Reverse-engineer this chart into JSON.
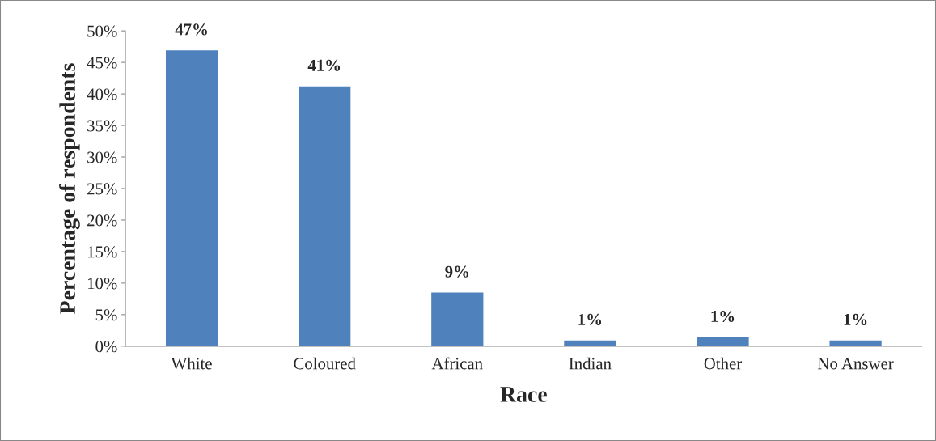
{
  "chart_data": {
    "type": "bar",
    "xlabel": "Race",
    "ylabel": "Percentage of respondents",
    "categories": [
      "White",
      "Coloured",
      "African",
      "Indian",
      "Other",
      "No Answer"
    ],
    "values": [
      47,
      41.3,
      8.6,
      1.0,
      1.5,
      1.0
    ],
    "value_labels": [
      "47%",
      "41%",
      "9%",
      "1%",
      "1%",
      "1%"
    ],
    "color": "#4f81bd",
    "ylim": [
      0,
      50
    ],
    "yticks": [
      {
        "value": 0,
        "label": "0%"
      },
      {
        "value": 5,
        "label": "5%"
      },
      {
        "value": 10,
        "label": "10%"
      },
      {
        "value": 15,
        "label": "15%"
      },
      {
        "value": 20,
        "label": "20%"
      },
      {
        "value": 25,
        "label": "25%"
      },
      {
        "value": 30,
        "label": "30%"
      },
      {
        "value": 35,
        "label": "35%"
      },
      {
        "value": 40,
        "label": "40%"
      },
      {
        "value": 45,
        "label": "45%"
      },
      {
        "value": 50,
        "label": "50%"
      }
    ],
    "grid": false,
    "legend": false
  }
}
